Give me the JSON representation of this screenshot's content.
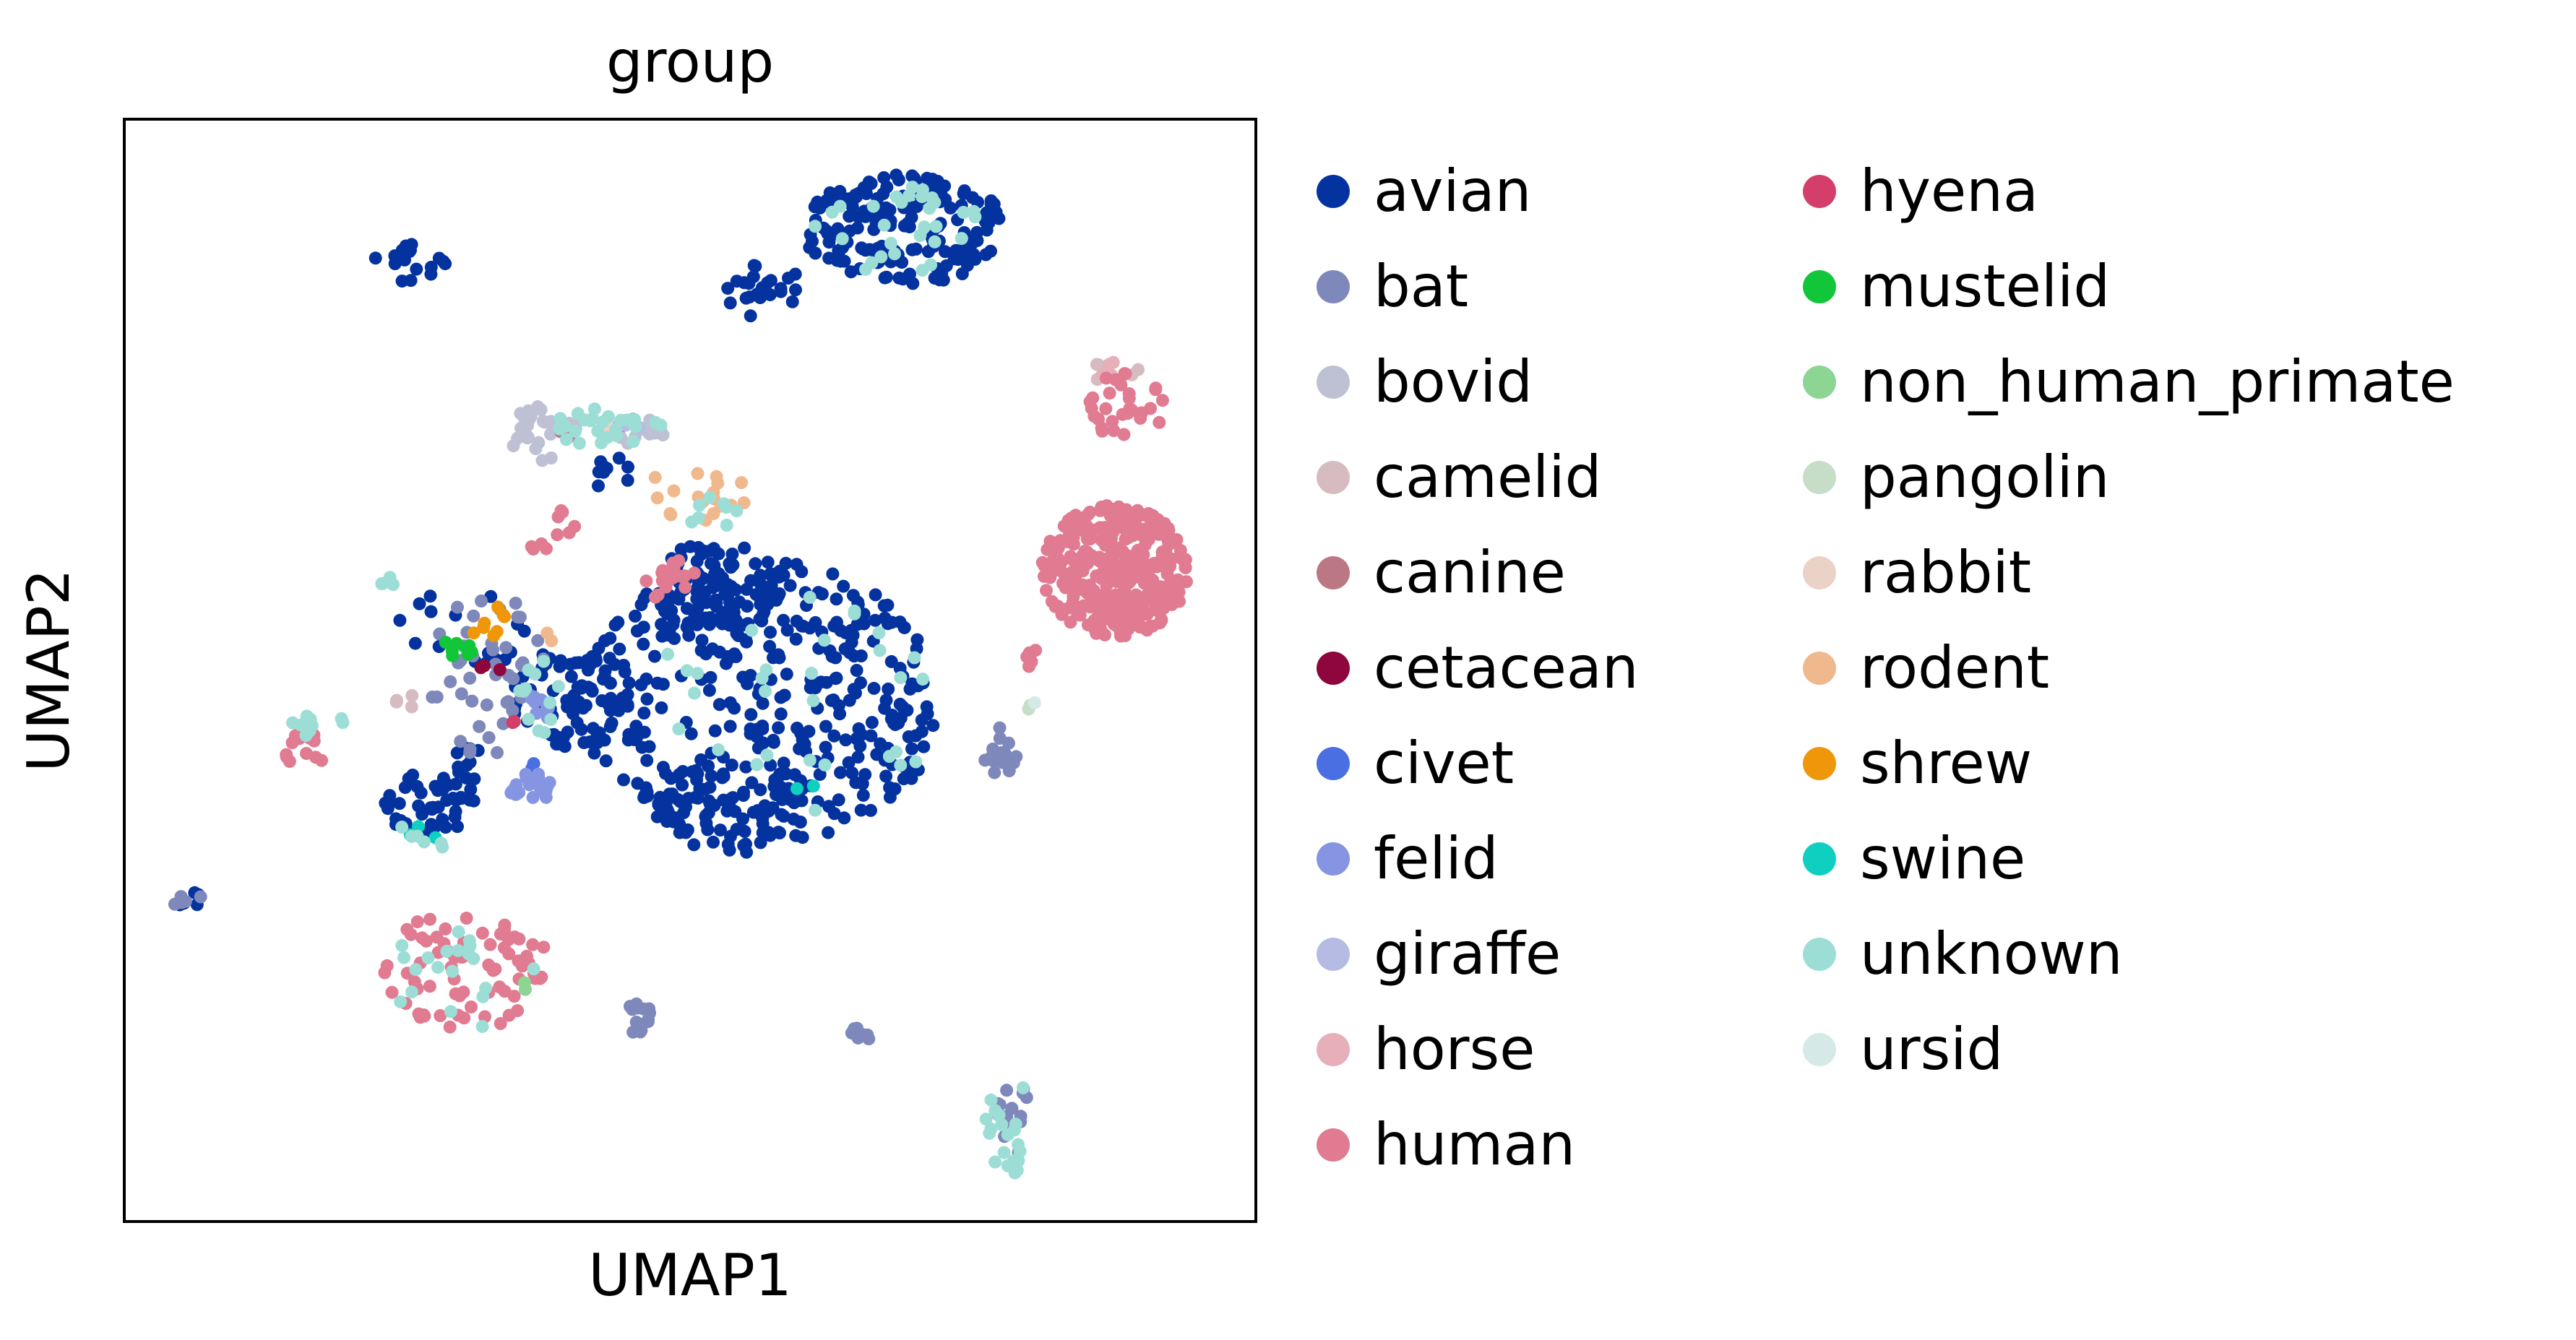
{
  "chart_data": {
    "type": "scatter",
    "title": "group",
    "xlabel": "UMAP1",
    "ylabel": "UMAP2",
    "xlim": [
      0,
      100
    ],
    "ylim": [
      0,
      100
    ],
    "grid": false,
    "ticks": "none",
    "legend_position": "right, outside plot, two columns",
    "series": [
      {
        "name": "avian",
        "color": "#0433a0",
        "clusters": [
          {
            "x": [
              60,
              78
            ],
            "y": [
              85,
              95
            ],
            "n": 170
          },
          {
            "x": [
              53,
              60
            ],
            "y": [
              82,
              87
            ],
            "n": 25
          },
          {
            "x": [
              34,
              44
            ],
            "y": [
              42,
              52
            ],
            "n": 60
          },
          {
            "x": [
              40,
              72
            ],
            "y": [
              34,
              60
            ],
            "n": 380
          },
          {
            "x": [
              47,
              58
            ],
            "y": [
              53,
              62
            ],
            "n": 80
          },
          {
            "x": [
              47,
              60
            ],
            "y": [
              33,
              42
            ],
            "n": 60
          },
          {
            "x": [
              22,
              29
            ],
            "y": [
              85,
              89
            ],
            "n": 18
          },
          {
            "x": [
              23,
              31
            ],
            "y": [
              35,
              41
            ],
            "n": 45
          },
          {
            "x": [
              29,
              33
            ],
            "y": [
              40,
              44
            ],
            "n": 10
          },
          {
            "x": [
              41,
              45
            ],
            "y": [
              66,
              72
            ],
            "n": 10
          },
          {
            "x": [
              4,
              7
            ],
            "y": [
              28,
              30
            ],
            "n": 5
          },
          {
            "x": [
              24,
              36
            ],
            "y": [
              50,
              58
            ],
            "n": 18
          }
        ]
      },
      {
        "name": "bat",
        "color": "#7f88bb",
        "clusters": [
          {
            "x": [
              27,
              38
            ],
            "y": [
              42,
              57
            ],
            "n": 45
          },
          {
            "x": [
              76,
              79
            ],
            "y": [
              40,
              45
            ],
            "n": 18
          },
          {
            "x": [
              44,
              47
            ],
            "y": [
              17,
              20
            ],
            "n": 14
          },
          {
            "x": [
              64,
              66
            ],
            "y": [
              16,
              18
            ],
            "n": 7
          },
          {
            "x": [
              77,
              80
            ],
            "y": [
              6,
              13
            ],
            "n": 14
          },
          {
            "x": [
              4,
              7
            ],
            "y": [
              28,
              30
            ],
            "n": 5
          }
        ]
      },
      {
        "name": "bovid",
        "color": "#bec1d4",
        "clusters": [
          {
            "x": [
              34,
              40
            ],
            "y": [
              69,
              74
            ],
            "n": 30
          },
          {
            "x": [
              43,
              48
            ],
            "y": [
              70,
              73
            ],
            "n": 15
          }
        ]
      },
      {
        "name": "camelid",
        "color": "#d6bcc0",
        "clusters": [
          {
            "x": [
              85,
              90
            ],
            "y": [
              76,
              78
            ],
            "n": 8
          },
          {
            "x": [
              24,
              26
            ],
            "y": [
              46,
              48
            ],
            "n": 4
          }
        ]
      },
      {
        "name": "canine",
        "color": "#bb7784",
        "clusters": [
          {
            "x": [
              38,
              40
            ],
            "y": [
              70,
              72
            ],
            "n": 2
          }
        ]
      },
      {
        "name": "cetacean",
        "color": "#8e063b",
        "clusters": [
          {
            "x": [
              31,
              34
            ],
            "y": [
              50,
              51
            ],
            "n": 3
          }
        ]
      },
      {
        "name": "civet",
        "color": "#4a6fe3",
        "clusters": [
          {
            "x": [
              35,
              37
            ],
            "y": [
              41,
              43
            ],
            "n": 2
          }
        ]
      },
      {
        "name": "felid",
        "color": "#8595e1",
        "clusters": [
          {
            "x": [
              34,
              38
            ],
            "y": [
              38,
              41
            ],
            "n": 25
          },
          {
            "x": [
              35,
              38
            ],
            "y": [
              45,
              48
            ],
            "n": 8
          }
        ]
      },
      {
        "name": "giraffe",
        "color": "#b5bbe3",
        "clusters": [
          {
            "x": [
              43,
              46
            ],
            "y": [
              71,
              73
            ],
            "n": 4
          }
        ]
      },
      {
        "name": "horse",
        "color": "#e6afb9",
        "clusters": [
          {
            "x": [
              85,
              89
            ],
            "y": [
              76,
              78
            ],
            "n": 5
          }
        ]
      },
      {
        "name": "human",
        "color": "#e07b91",
        "clusters": [
          {
            "x": [
              81,
              94
            ],
            "y": [
              53,
              65
            ],
            "n": 320
          },
          {
            "x": [
              85,
              92
            ],
            "y": [
              71,
              77
            ],
            "n": 30
          },
          {
            "x": [
              14,
              18
            ],
            "y": [
              41,
              45
            ],
            "n": 14
          },
          {
            "x": [
              22,
              38
            ],
            "y": [
              17,
              28
            ],
            "n": 70
          },
          {
            "x": [
              46,
              51
            ],
            "y": [
              56,
              60
            ],
            "n": 18
          },
          {
            "x": [
              37,
              40
            ],
            "y": [
              62,
              65
            ],
            "n": 6
          },
          {
            "x": [
              79,
              82
            ],
            "y": [
              50,
              52
            ],
            "n": 6
          },
          {
            "x": [
              35,
              38
            ],
            "y": [
              60,
              62
            ],
            "n": 4
          }
        ]
      },
      {
        "name": "hyena",
        "color": "#d33f6a",
        "clusters": [
          {
            "x": [
              33,
              35
            ],
            "y": [
              45,
              47
            ],
            "n": 2
          }
        ]
      },
      {
        "name": "mustelid",
        "color": "#11c638",
        "clusters": [
          {
            "x": [
              28,
              31
            ],
            "y": [
              51,
              53
            ],
            "n": 10
          }
        ]
      },
      {
        "name": "non_human_primate",
        "color": "#8dd593",
        "clusters": [
          {
            "x": [
              35,
              36
            ],
            "y": [
              21,
              22
            ],
            "n": 2
          }
        ]
      },
      {
        "name": "pangolin",
        "color": "#c6dec7",
        "clusters": [
          {
            "x": [
              79,
              81
            ],
            "y": [
              46,
              47
            ],
            "n": 2
          }
        ]
      },
      {
        "name": "rabbit",
        "color": "#ead3c6",
        "clusters": [
          {
            "x": [
              40,
              44
            ],
            "y": [
              71,
              73
            ],
            "n": 3
          }
        ]
      },
      {
        "name": "rodent",
        "color": "#f0b98d",
        "clusters": [
          {
            "x": [
              46,
              55
            ],
            "y": [
              63,
              69
            ],
            "n": 18
          },
          {
            "x": [
              37,
              40
            ],
            "y": [
              52,
              54
            ],
            "n": 2
          }
        ]
      },
      {
        "name": "shrew",
        "color": "#ef9708",
        "clusters": [
          {
            "x": [
              30,
              34
            ],
            "y": [
              53,
              56
            ],
            "n": 8
          }
        ]
      },
      {
        "name": "swine",
        "color": "#0fcfc0",
        "clusters": [
          {
            "x": [
              25,
              29
            ],
            "y": [
              34,
              36
            ],
            "n": 3
          },
          {
            "x": [
              59,
              61
            ],
            "y": [
              39,
              40
            ],
            "n": 2
          }
        ]
      },
      {
        "name": "unknown",
        "color": "#9cded6",
        "clusters": [
          {
            "x": [
              60,
              78
            ],
            "y": [
              86,
              95
            ],
            "n": 30
          },
          {
            "x": [
              38,
              48
            ],
            "y": [
              70,
              74
            ],
            "n": 25
          },
          {
            "x": [
              49,
              55
            ],
            "y": [
              63,
              66
            ],
            "n": 8
          },
          {
            "x": [
              13,
              21
            ],
            "y": [
              44,
              46
            ],
            "n": 10
          },
          {
            "x": [
              22,
              38
            ],
            "y": [
              17,
              27
            ],
            "n": 20
          },
          {
            "x": [
              76,
              80
            ],
            "y": [
              4,
              14
            ],
            "n": 20
          },
          {
            "x": [
              22,
              24
            ],
            "y": [
              57,
              59
            ],
            "n": 4
          },
          {
            "x": [
              34,
              39
            ],
            "y": [
              44,
              51
            ],
            "n": 12
          },
          {
            "x": [
              46,
              72
            ],
            "y": [
              36,
              60
            ],
            "n": 30
          },
          {
            "x": [
              23,
              29
            ],
            "y": [
              33,
              36
            ],
            "n": 6
          }
        ]
      },
      {
        "name": "ursid",
        "color": "#d5eae7",
        "clusters": [
          {
            "x": [
              79,
              81
            ],
            "y": [
              47,
              48
            ],
            "n": 1
          }
        ]
      }
    ]
  }
}
